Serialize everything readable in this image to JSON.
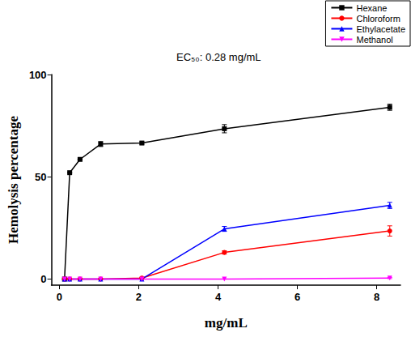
{
  "chart_data": {
    "type": "line",
    "xlabel": "mg/mL",
    "ylabel": "Hemolysis percentage",
    "annotation": "EC₅₀: 0.28 mg/mL",
    "x": [
      0.13,
      0.26,
      0.52,
      1.04,
      2.08,
      4.16,
      8.33
    ],
    "xlim": [
      -0.2,
      8.6
    ],
    "xticks": [
      0,
      2,
      4,
      6,
      8
    ],
    "ylim": [
      -3,
      100
    ],
    "yticks": [
      0,
      50,
      100
    ],
    "legend": "upper right",
    "grid": false,
    "series": [
      {
        "name": "Hexane",
        "color": "#000000",
        "marker": "square",
        "values": [
          0,
          52,
          58.5,
          66,
          66.5,
          73.5,
          84
        ],
        "errors": [
          0,
          0,
          0,
          1.2,
          0.6,
          2,
          1.5
        ]
      },
      {
        "name": "Chloroform",
        "color": "#ff0000",
        "marker": "circle",
        "values": [
          0,
          0,
          0,
          0,
          0.5,
          13,
          23.5
        ],
        "errors": [
          0,
          0,
          0,
          0,
          0.3,
          0.8,
          2.5
        ]
      },
      {
        "name": "Ethylacetate",
        "color": "#0000ff",
        "marker": "triangle",
        "values": [
          0,
          0,
          0,
          0,
          0,
          24.5,
          36
        ],
        "errors": [
          0,
          0,
          0,
          0,
          0,
          1.2,
          1.5
        ]
      },
      {
        "name": "Methanol",
        "color": "#ff00ff",
        "marker": "triangle-down",
        "values": [
          0,
          0,
          0,
          0,
          0,
          0,
          0.5
        ],
        "errors": [
          0,
          0,
          0,
          0,
          0,
          0,
          0.3
        ]
      }
    ]
  }
}
